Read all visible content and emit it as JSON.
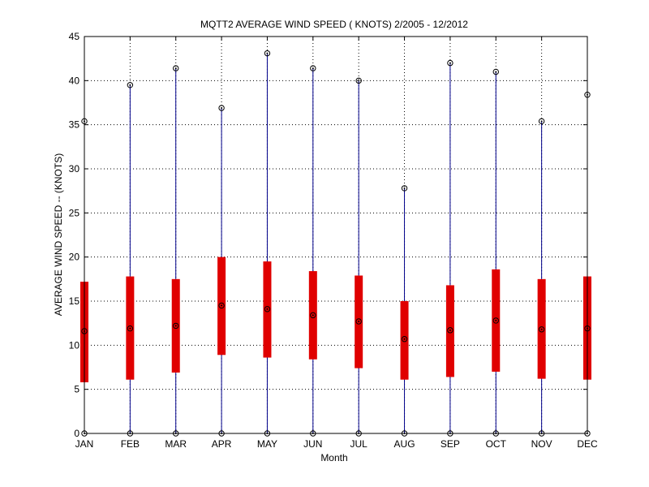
{
  "chart_data": {
    "type": "box",
    "title": "MQTT2  AVERAGE WIND SPEED ( KNOTS) 2/2005 - 12/2012",
    "xlabel": "Month",
    "ylabel": "AVERAGE WIND SPEED -- (KNOTS)",
    "ylim": [
      0,
      45
    ],
    "yticks": [
      0,
      5,
      10,
      15,
      20,
      25,
      30,
      35,
      40,
      45
    ],
    "grid": true,
    "categories": [
      "JAN",
      "FEB",
      "MAR",
      "APR",
      "MAY",
      "JUN",
      "JUL",
      "AUG",
      "SEP",
      "OCT",
      "NOV",
      "DEC"
    ],
    "min": [
      0,
      0,
      0,
      0,
      0,
      0,
      0,
      0,
      0,
      0,
      0,
      0
    ],
    "q1": [
      5.8,
      6.1,
      6.9,
      8.9,
      8.6,
      8.4,
      7.4,
      6.1,
      6.4,
      7.0,
      6.2,
      6.1
    ],
    "median": [
      11.6,
      11.9,
      12.2,
      14.5,
      14.1,
      13.4,
      12.7,
      10.7,
      11.7,
      12.8,
      11.8,
      11.9
    ],
    "q3": [
      17.2,
      17.8,
      17.5,
      20.0,
      19.5,
      18.4,
      17.9,
      15.0,
      16.8,
      18.6,
      17.5,
      17.8
    ],
    "max": [
      35.4,
      39.5,
      41.4,
      36.9,
      43.1,
      41.4,
      40.0,
      27.8,
      42.0,
      41.0,
      35.4,
      38.4
    ],
    "colors": {
      "box": "#e00000",
      "whisker": "#00008b",
      "marker": "#000000",
      "grid": "#000000"
    }
  }
}
